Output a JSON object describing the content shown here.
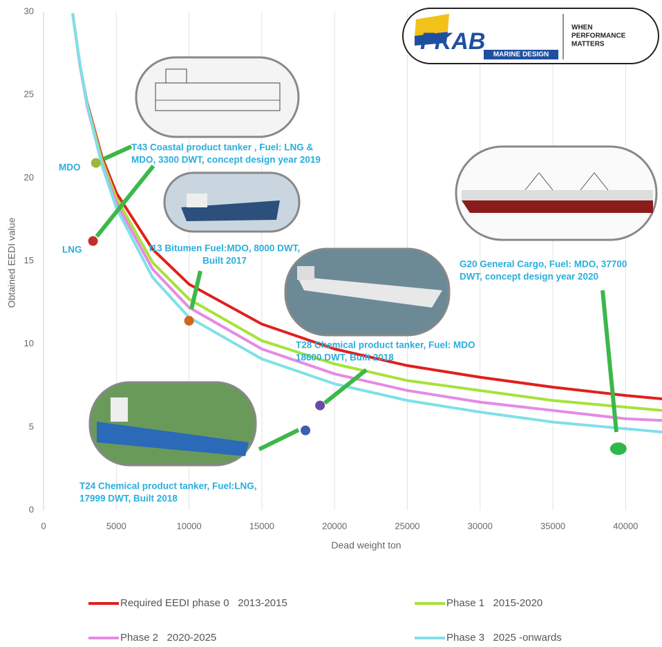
{
  "chart_data": {
    "type": "line",
    "xlabel": "Dead weight ton",
    "ylabel": "Obtained EEDI value",
    "xlim": [
      0,
      42500
    ],
    "ylim": [
      0,
      30
    ],
    "xticks": [
      0,
      5000,
      10000,
      15000,
      20000,
      25000,
      30000,
      35000,
      40000
    ],
    "yticks": [
      0,
      5,
      10,
      15,
      20,
      25,
      30
    ],
    "grid": "vertical",
    "x": [
      2000,
      2500,
      3000,
      4000,
      5000,
      7500,
      10000,
      15000,
      20000,
      25000,
      30000,
      35000,
      40000,
      42500
    ],
    "series": [
      {
        "name": "Required EEDI phase 0   2013-2015",
        "color": "#e0201c",
        "values": [
          29.9,
          26.8,
          24.5,
          21.3,
          19.1,
          15.7,
          13.6,
          11.2,
          9.7,
          8.7,
          8.0,
          7.4,
          6.9,
          6.7
        ]
      },
      {
        "name": "Phase 1   2015-2020",
        "color": "#a6e23a",
        "values": [
          29.9,
          26.8,
          24.4,
          21.1,
          18.8,
          14.9,
          12.7,
          10.2,
          8.8,
          7.8,
          7.2,
          6.6,
          6.2,
          6.0
        ]
      },
      {
        "name": "Phase 2   2020-2025",
        "color": "#e58ae6",
        "values": [
          29.9,
          26.8,
          24.3,
          20.9,
          18.5,
          14.5,
          12.2,
          9.7,
          8.2,
          7.2,
          6.5,
          6.0,
          5.5,
          5.4
        ]
      },
      {
        "name": "Phase 3   2025 -onwards",
        "color": "#7fe0e8",
        "values": [
          29.9,
          26.9,
          24.4,
          20.8,
          18.2,
          14.0,
          11.6,
          9.1,
          7.6,
          6.6,
          5.9,
          5.3,
          4.9,
          4.7
        ]
      }
    ],
    "points": [
      {
        "label": "MDO",
        "x": 3600,
        "y": 20.9,
        "color": "#9ab83a"
      },
      {
        "label": "LNG",
        "x": 3400,
        "y": 16.2,
        "color": "#c0302a"
      },
      {
        "x": 10000,
        "y": 11.4,
        "color": "#d0651c"
      },
      {
        "x": 18000,
        "y": 4.8,
        "color": "#3a5fb0"
      },
      {
        "x": 19000,
        "y": 6.3,
        "color": "#6a4aa8"
      },
      {
        "x": 39500,
        "y": 3.7,
        "color": "#2eb84a"
      }
    ],
    "annotations": [
      {
        "text": [
          "T43 Coastal product tanker , Fuel: LNG &",
          "MDO, 3300 DWT, concept design year 2019"
        ]
      },
      {
        "text": [
          "I13 Bitumen Fuel:MDO, 8000 DWT,",
          "Built 2017"
        ]
      },
      {
        "text": [
          "T28 Chemical product tanker, Fuel: MDO",
          "18600 DWT, Built 2018"
        ]
      },
      {
        "text": [
          "G20 General Cargo, Fuel: MDO, 37700",
          "DWT, concept design year 2020"
        ]
      },
      {
        "text": [
          "T24 Chemical product tanker, Fuel:LNG,",
          "17999 DWT, Built 2018"
        ]
      }
    ]
  },
  "logo": {
    "brand": "FKAB",
    "sub": "MARINE DESIGN",
    "slogan": [
      "WHEN",
      "PERFORMANCE",
      "MATTERS"
    ]
  }
}
